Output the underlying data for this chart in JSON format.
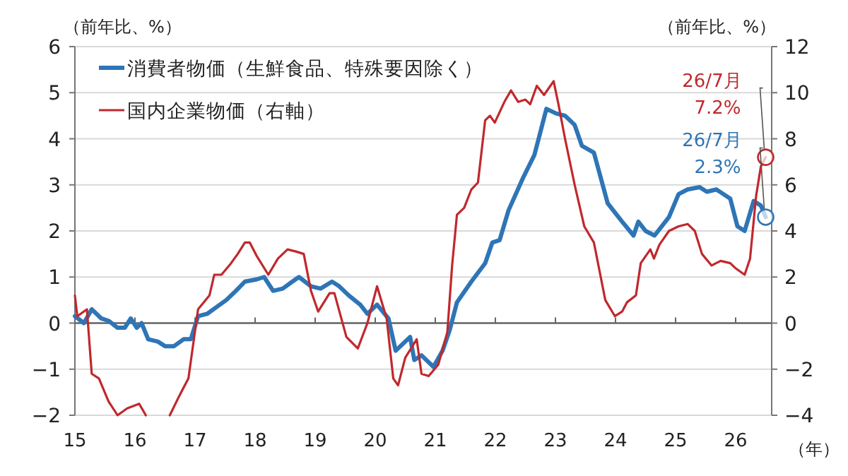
{
  "chart_data": {
    "type": "line",
    "ylabel": "（前年比、%）",
    "y2label": "（前年比、%）",
    "xlabel": "（年）",
    "xlim": [
      2015,
      2026.6
    ],
    "xticks": [
      {
        "value": 2015,
        "label": "15"
      },
      {
        "value": 2016,
        "label": "16"
      },
      {
        "value": 2017,
        "label": "17"
      },
      {
        "value": 2018,
        "label": "18"
      },
      {
        "value": 2019,
        "label": "19"
      },
      {
        "value": 2020,
        "label": "20"
      },
      {
        "value": 2021,
        "label": "21"
      },
      {
        "value": 2022,
        "label": "22"
      },
      {
        "value": 2023,
        "label": "23"
      },
      {
        "value": 2024,
        "label": "24"
      },
      {
        "value": 2025,
        "label": "25"
      },
      {
        "value": 2026,
        "label": "26"
      }
    ],
    "ylim": [
      -2,
      6
    ],
    "yticks": [
      -2,
      -1,
      0,
      1,
      2,
      3,
      4,
      5,
      6
    ],
    "y2lim": [
      -4,
      12
    ],
    "y2ticks": [
      -4,
      -2,
      0,
      2,
      4,
      6,
      8,
      10,
      12
    ],
    "grid": "y",
    "legend": "top left",
    "series": [
      {
        "name": "消費者物価（生鮮食品、特殊要因除く）",
        "color": "#2e75b6",
        "x": [
          2015,
          2015.15,
          2015.28,
          2015.44,
          2015.56,
          2015.71,
          2015.83,
          2015.93,
          2016.03,
          2016.11,
          2016.22,
          2016.38,
          2016.5,
          2016.65,
          2016.81,
          2016.93,
          2017.05,
          2017.2,
          2017.36,
          2017.52,
          2017.68,
          2017.83,
          2018.03,
          2018.15,
          2018.3,
          2018.46,
          2018.62,
          2018.73,
          2018.93,
          2019.09,
          2019.28,
          2019.4,
          2019.56,
          2019.75,
          2019.87,
          2020.03,
          2020.22,
          2020.34,
          2020.58,
          2020.65,
          2020.77,
          2020.97,
          2021.12,
          2021.24,
          2021.36,
          2021.6,
          2021.83,
          2021.95,
          2022.07,
          2022.22,
          2022.46,
          2022.65,
          2022.85,
          2023.01,
          2023.16,
          2023.32,
          2023.44,
          2023.64,
          2023.87,
          2024.11,
          2024.3,
          2024.38,
          2024.5,
          2024.65,
          2024.89,
          2025.05,
          2025.2,
          2025.4,
          2025.52,
          2025.68,
          2025.91,
          2026.03,
          2026.15,
          2026.3,
          2026.42,
          2026.5
        ],
        "values": [
          0.15,
          0,
          0.3,
          0.1,
          0.05,
          -0.1,
          -0.1,
          0.1,
          -0.1,
          0,
          -0.35,
          -0.4,
          -0.5,
          -0.5,
          -0.35,
          -0.35,
          0.15,
          0.2,
          0.35,
          0.5,
          0.7,
          0.9,
          0.95,
          1,
          0.7,
          0.75,
          0.9,
          1,
          0.8,
          0.75,
          0.9,
          0.8,
          0.6,
          0.4,
          0.2,
          0.4,
          0.1,
          -0.6,
          -0.3,
          -0.8,
          -0.7,
          -0.95,
          -0.6,
          -0.15,
          0.45,
          0.9,
          1.3,
          1.75,
          1.8,
          2.45,
          3.15,
          3.65,
          4.65,
          4.55,
          4.5,
          4.3,
          3.85,
          3.7,
          2.6,
          2.2,
          1.9,
          2.2,
          2,
          1.9,
          2.3,
          2.8,
          2.9,
          2.95,
          2.85,
          2.9,
          2.7,
          2.1,
          2,
          2.65,
          2.55,
          2.3
        ]
      },
      {
        "name": "国内企業物価（右軸）",
        "color": "#c0282d",
        "axis": "y2",
        "x": [
          2015,
          2015.04,
          2015.2,
          2015.28,
          2015.4,
          2015.56,
          2015.71,
          2015.87,
          2016.07,
          2016.18,
          2016.35,
          2016.58,
          2016.73,
          2016.89,
          2017.05,
          2017.24,
          2017.32,
          2017.44,
          2017.6,
          2017.71,
          2017.83,
          2017.91,
          2018.03,
          2018.22,
          2018.38,
          2018.54,
          2018.69,
          2018.81,
          2018.93,
          2019.05,
          2019.24,
          2019.32,
          2019.52,
          2019.71,
          2019.87,
          2020.03,
          2020.19,
          2020.3,
          2020.38,
          2020.5,
          2020.62,
          2020.69,
          2020.77,
          2020.89,
          2021.05,
          2021.2,
          2021.28,
          2021.36,
          2021.48,
          2021.6,
          2021.71,
          2021.83,
          2021.91,
          2021.99,
          2022.15,
          2022.26,
          2022.38,
          2022.5,
          2022.58,
          2022.69,
          2022.81,
          2022.97,
          2023.05,
          2023.16,
          2023.32,
          2023.48,
          2023.64,
          2023.83,
          2023.99,
          2024.11,
          2024.19,
          2024.34,
          2024.42,
          2024.58,
          2024.64,
          2024.73,
          2024.89,
          2025.05,
          2025.2,
          2025.32,
          2025.44,
          2025.6,
          2025.75,
          2025.91,
          2025.99,
          2026.15,
          2026.24,
          2026.34,
          2026.42,
          2026.5
        ],
        "values": [
          1.2,
          0.3,
          0.6,
          -2.2,
          -2.4,
          -3.4,
          -4,
          -3.7,
          -3.5,
          -4,
          null,
          -4,
          -3.2,
          -2.4,
          0.6,
          1.2,
          2.1,
          2.1,
          2.6,
          3,
          3.5,
          3.5,
          2.9,
          2.1,
          2.8,
          3.2,
          3.1,
          3,
          1.4,
          0.5,
          1.3,
          1.3,
          -0.6,
          -1.1,
          0,
          1.6,
          0.2,
          -2.4,
          -2.7,
          -1.5,
          -1,
          -0.7,
          -2.2,
          -2.3,
          -1.8,
          -0.4,
          2.5,
          4.7,
          5,
          5.8,
          6.1,
          8.8,
          9,
          8.7,
          9.6,
          10.1,
          9.6,
          9.7,
          9.5,
          10.3,
          9.9,
          10.5,
          9.5,
          8,
          6,
          4.2,
          3.5,
          1,
          0.3,
          0.5,
          0.9,
          1.2,
          2.6,
          3.2,
          2.8,
          3.4,
          4,
          4.2,
          4.3,
          4,
          3,
          2.5,
          2.7,
          2.6,
          2.4,
          2.1,
          2.8,
          5.5,
          6.8,
          7.2
        ]
      }
    ],
    "annotations": [
      {
        "text": "26/7月\n7.2%",
        "x": 2026.5,
        "y": 3.6
      },
      {
        "text": "26/7月\n2.3%",
        "x": 2026.5,
        "y": 2.3
      }
    ]
  }
}
